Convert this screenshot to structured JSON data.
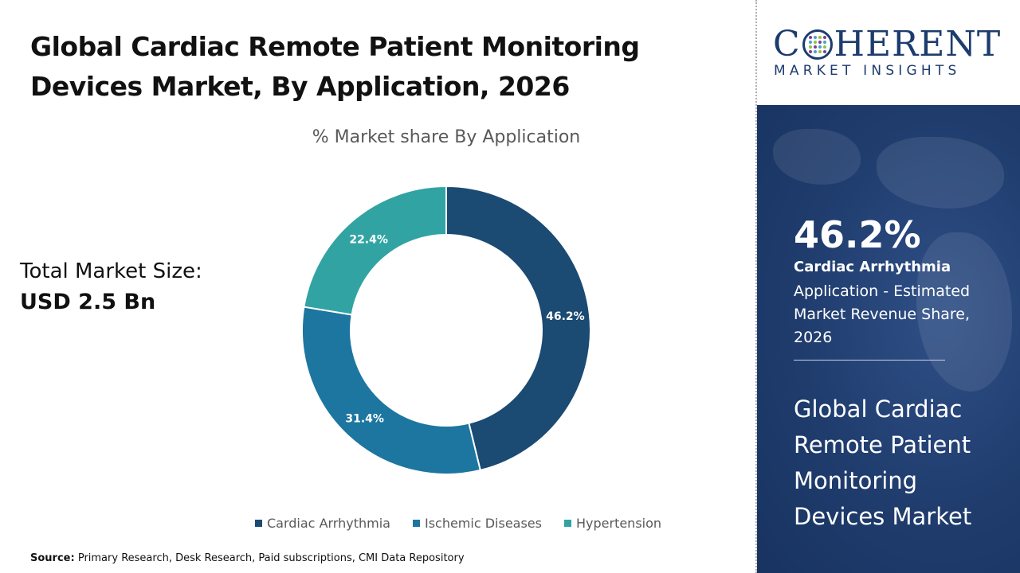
{
  "header": {
    "title": "Global Cardiac Remote Patient Monitoring Devices Market, By Application, 2026"
  },
  "market_size": {
    "label": "Total Market Size:",
    "value": "USD 2.5 Bn"
  },
  "chart_data": {
    "type": "pie",
    "donut": true,
    "title": "% Market share By Application",
    "categories": [
      "Cardiac Arrhythmia",
      "Ischemic Diseases",
      "Hypertension"
    ],
    "values": [
      46.2,
      31.4,
      22.4
    ],
    "data_labels": [
      "46.2%",
      "31.4%",
      "22.4%"
    ],
    "colors": [
      "#1b4a72",
      "#1c76a0",
      "#32a3a3"
    ],
    "legend_position": "bottom"
  },
  "source": {
    "label": "Source:",
    "text": "Primary Research, Desk Research, Paid subscriptions, CMI Data Repository"
  },
  "logo": {
    "main_left": "C",
    "main_right": "HERENT",
    "sub": "MARKET INSIGHTS",
    "dot_colors": [
      "#7e3f98",
      "#4a9fd5",
      "#8cc63f",
      "#7e3f98",
      "#4a9fd5",
      "#8cc63f",
      "#7e3f98",
      "#4a9fd5",
      "#8cc63f",
      "#7e3f98",
      "#4a9fd5",
      "#8cc63f",
      "#7e3f98",
      "#4a9fd5",
      "#8cc63f",
      "#7e3f98"
    ]
  },
  "highlight": {
    "value": "46.2%",
    "label": "Cardiac Arrhythmia",
    "description": "Application - Estimated Market Revenue Share, 2026",
    "market_name": "Global Cardiac Remote Patient Monitoring Devices Market"
  }
}
